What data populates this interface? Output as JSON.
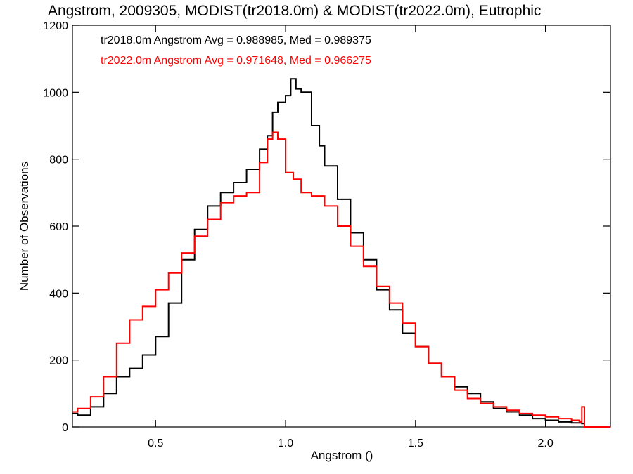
{
  "chart_data": {
    "type": "line",
    "title": "Angstrom, 2009305, MODIST(tr2018.0m) & MODIST(tr2022.0m), Eutrophic",
    "xlabel": "Angstrom ()",
    "ylabel": "Number of Observations",
    "xlim": [
      0.18,
      2.25
    ],
    "ylim": [
      0,
      1200
    ],
    "x_ticks": [
      0.5,
      1.0,
      1.5,
      2.0
    ],
    "x_tick_labels": [
      "0.5",
      "1.0",
      "1.5",
      "2.0"
    ],
    "y_ticks": [
      0,
      200,
      400,
      600,
      800,
      1000,
      1200
    ],
    "y_tick_labels": [
      "0",
      "200",
      "400",
      "600",
      "800",
      "1000",
      "1200"
    ],
    "grid": false,
    "legend_position": "top-left",
    "annotations": [
      {
        "text": "tr2018.0m Angstrom Avg = 0.988985, Med = 0.989375",
        "color": "#000000"
      },
      {
        "text": "tr2022.0m Angstrom Avg = 0.971648, Med = 0.966275",
        "color": "#ff0000"
      }
    ],
    "series": [
      {
        "color": "#000000",
        "x": [
          0.18,
          0.2,
          0.25,
          0.3,
          0.35,
          0.4,
          0.45,
          0.5,
          0.55,
          0.6,
          0.65,
          0.7,
          0.75,
          0.8,
          0.85,
          0.9,
          0.93,
          0.95,
          0.97,
          1.0,
          1.02,
          1.04,
          1.06,
          1.1,
          1.13,
          1.15,
          1.2,
          1.25,
          1.3,
          1.35,
          1.4,
          1.45,
          1.5,
          1.55,
          1.6,
          1.65,
          1.7,
          1.75,
          1.8,
          1.85,
          1.9,
          1.95,
          2.0,
          2.05,
          2.1,
          2.14,
          2.15,
          2.2,
          2.25
        ],
        "values": [
          40,
          35,
          60,
          100,
          150,
          175,
          215,
          270,
          370,
          500,
          590,
          660,
          700,
          730,
          770,
          830,
          870,
          940,
          970,
          990,
          1040,
          1010,
          1000,
          900,
          840,
          780,
          680,
          580,
          500,
          410,
          350,
          280,
          240,
          190,
          150,
          120,
          100,
          75,
          55,
          45,
          35,
          25,
          20,
          15,
          12,
          10,
          0,
          0,
          0
        ]
      },
      {
        "color": "#ff0000",
        "x": [
          0.18,
          0.2,
          0.25,
          0.3,
          0.35,
          0.4,
          0.45,
          0.5,
          0.55,
          0.6,
          0.65,
          0.7,
          0.75,
          0.8,
          0.85,
          0.9,
          0.93,
          0.95,
          0.97,
          1.0,
          1.03,
          1.06,
          1.1,
          1.15,
          1.2,
          1.25,
          1.3,
          1.35,
          1.4,
          1.45,
          1.5,
          1.55,
          1.6,
          1.65,
          1.7,
          1.75,
          1.8,
          1.85,
          1.9,
          1.95,
          2.0,
          2.05,
          2.1,
          2.13,
          2.14,
          2.15,
          2.2,
          2.25
        ],
        "values": [
          45,
          55,
          90,
          150,
          250,
          320,
          360,
          410,
          460,
          520,
          570,
          620,
          670,
          690,
          700,
          790,
          860,
          880,
          860,
          760,
          740,
          700,
          690,
          660,
          600,
          540,
          480,
          420,
          370,
          310,
          240,
          190,
          150,
          110,
          85,
          70,
          60,
          50,
          40,
          35,
          30,
          25,
          20,
          15,
          60,
          0,
          0,
          0
        ]
      }
    ]
  }
}
